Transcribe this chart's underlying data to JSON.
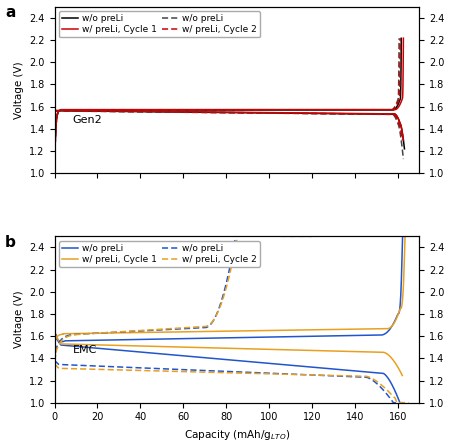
{
  "panel_a": {
    "label": "a",
    "electrolyte": "Gen2",
    "legend_entries": [
      [
        "w/o preLi",
        "w/ preLi, Cycle 1"
      ],
      [
        "w/o preLi",
        "w/ preLi, Cycle 2"
      ]
    ],
    "color_black": "#000000",
    "color_darkgray": "#444444",
    "color_red": "#cc0000",
    "xlim": [
      0,
      170
    ],
    "ylim": [
      1.0,
      2.5
    ],
    "yticks": [
      1.0,
      1.2,
      1.4,
      1.6,
      1.8,
      2.0,
      2.2,
      2.4
    ],
    "xticks": [
      0,
      20,
      40,
      60,
      80,
      100,
      120,
      140,
      160
    ]
  },
  "panel_b": {
    "label": "b",
    "electrolyte": "EMC",
    "legend_entries": [
      [
        "w/o preLi",
        "w/ preLi, Cycle 1"
      ],
      [
        "w/o preLi",
        "w/ preLi, Cycle 2"
      ]
    ],
    "color_blue": "#2255cc",
    "color_orange": "#e8a020",
    "xlim": [
      0,
      170
    ],
    "ylim": [
      1.0,
      2.5
    ],
    "yticks": [
      1.0,
      1.2,
      1.4,
      1.6,
      1.8,
      2.0,
      2.2,
      2.4
    ],
    "xticks": [
      0,
      20,
      40,
      60,
      80,
      100,
      120,
      140,
      160
    ]
  },
  "xlabel": "Capacity (mAh/g$_{LTO}$)",
  "ylabel": "Voltage (V)"
}
